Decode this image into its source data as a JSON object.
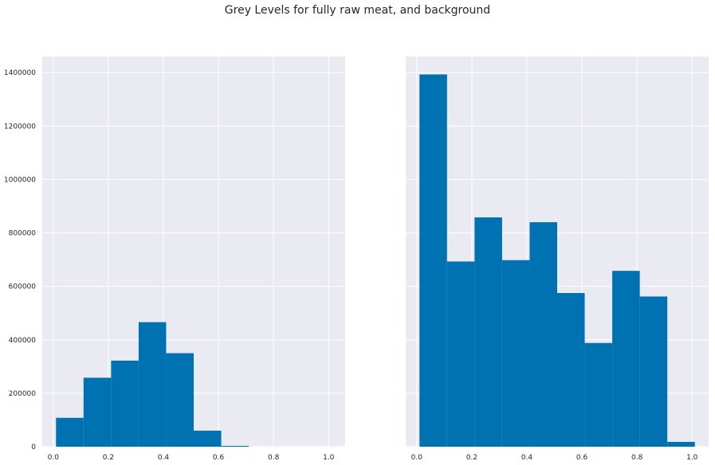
{
  "title": "Grey Levels for fully raw meat, and background",
  "colors": {
    "bar": "#0072b2",
    "panel_bg": "#eaeaf2",
    "grid": "#ffffff",
    "text": "#262626"
  },
  "chart_data": [
    {
      "type": "bar",
      "title": "",
      "xlabel": "",
      "ylabel": "",
      "bin_edges": [
        0.01,
        0.11,
        0.21,
        0.31,
        0.41,
        0.51,
        0.61,
        0.71,
        0.81,
        0.91,
        1.01
      ],
      "values": [
        108000,
        258000,
        322000,
        466000,
        350000,
        60000,
        3000,
        0,
        0,
        0
      ],
      "xlim": [
        -0.04,
        1.06
      ],
      "ylim": [
        0,
        1460000
      ],
      "xticks": [
        0.0,
        0.2,
        0.4,
        0.6,
        0.8,
        1.0
      ],
      "xtick_labels": [
        "0.0",
        "0.2",
        "0.4",
        "0.6",
        "0.8",
        "1.0"
      ],
      "yticks": [
        0,
        200000,
        400000,
        600000,
        800000,
        1000000,
        1200000,
        1400000
      ],
      "ytick_labels": [
        "0",
        "200000",
        "400000",
        "600000",
        "800000",
        "1000000",
        "1200000",
        "1400000"
      ],
      "grid": true
    },
    {
      "type": "bar",
      "title": "",
      "xlabel": "",
      "ylabel": "",
      "bin_edges": [
        0.01,
        0.11,
        0.21,
        0.31,
        0.41,
        0.51,
        0.61,
        0.71,
        0.81,
        0.91,
        1.01
      ],
      "values": [
        1393000,
        693000,
        858000,
        698000,
        840000,
        575000,
        388000,
        658000,
        562000,
        18000
      ],
      "xlim": [
        -0.04,
        1.06
      ],
      "ylim": [
        0,
        1460000
      ],
      "xticks": [
        0.0,
        0.2,
        0.4,
        0.6,
        0.8,
        1.0
      ],
      "xtick_labels": [
        "0.0",
        "0.2",
        "0.4",
        "0.6",
        "0.8",
        "1.0"
      ],
      "yticks": [
        0,
        200000,
        400000,
        600000,
        800000,
        1000000,
        1200000,
        1400000
      ],
      "ytick_labels": [],
      "grid": true
    }
  ]
}
